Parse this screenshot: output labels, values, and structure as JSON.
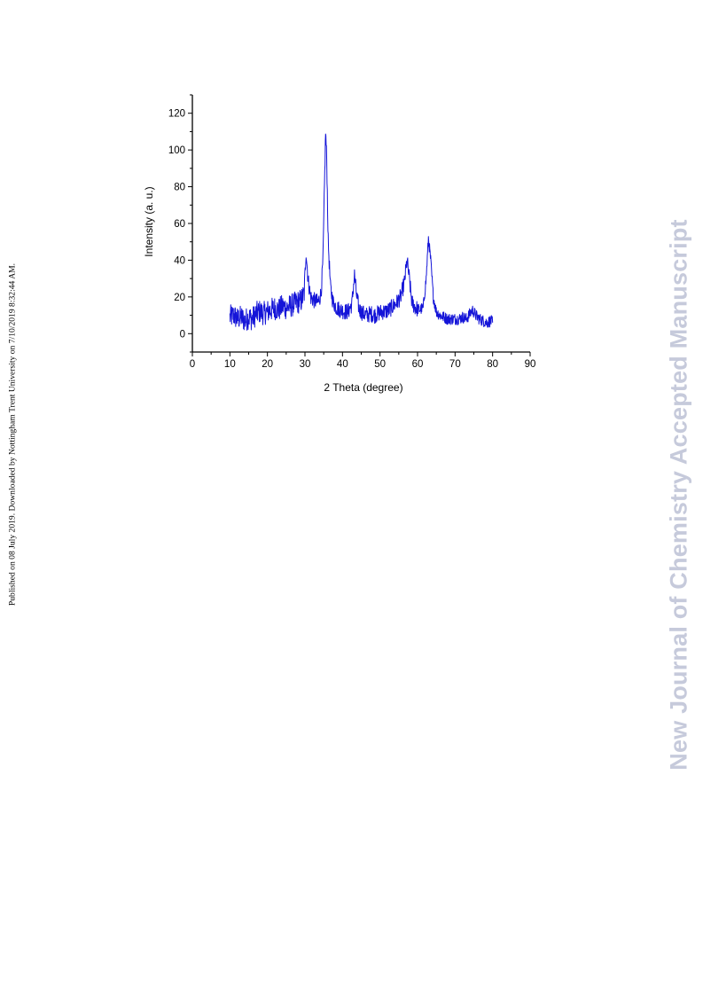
{
  "page": {
    "side_note": "Published on 08 July 2019. Downloaded by Nottingham Trent University on 7/10/2019 8:32:44 AM.",
    "watermark": "New Journal of Chemistry Accepted Manuscript",
    "watermark_color": "#c6cadb"
  },
  "chart_data": {
    "type": "line",
    "title": "",
    "xlabel": "2 Theta (degree)",
    "ylabel": "Intensity (a. u.)",
    "xlim": [
      0,
      90
    ],
    "ylim": [
      -10,
      130
    ],
    "xticks": [
      "0",
      "10",
      "20",
      "30",
      "40",
      "50",
      "60",
      "70",
      "80",
      "90"
    ],
    "yticks": [
      "0",
      "20",
      "40",
      "60",
      "80",
      "100",
      "120"
    ],
    "grid": false,
    "line_color": "#1414d8",
    "series": [
      {
        "points": [
          [
            10,
            9
          ],
          [
            11,
            10
          ],
          [
            12,
            8
          ],
          [
            13,
            9
          ],
          [
            14,
            7
          ],
          [
            15,
            9
          ],
          [
            16,
            8
          ],
          [
            17,
            11
          ],
          [
            18,
            12
          ],
          [
            19,
            11
          ],
          [
            20,
            12
          ],
          [
            21,
            13
          ],
          [
            22,
            14
          ],
          [
            23,
            13
          ],
          [
            24,
            15
          ],
          [
            25,
            14
          ],
          [
            26,
            15
          ],
          [
            27,
            16
          ],
          [
            28,
            17
          ],
          [
            29,
            18
          ],
          [
            29.8,
            22
          ],
          [
            30.3,
            45
          ],
          [
            30.8,
            30
          ],
          [
            31.5,
            20
          ],
          [
            32.5,
            18
          ],
          [
            33.5,
            17
          ],
          [
            34.3,
            22
          ],
          [
            34.8,
            40
          ],
          [
            35.2,
            80
          ],
          [
            35.5,
            110
          ],
          [
            35.8,
            95
          ],
          [
            36.2,
            50
          ],
          [
            36.8,
            25
          ],
          [
            37.5,
            17
          ],
          [
            38.5,
            14
          ],
          [
            39.5,
            13
          ],
          [
            40.5,
            12
          ],
          [
            41.5,
            12
          ],
          [
            42.5,
            16
          ],
          [
            43.2,
            32
          ],
          [
            43.8,
            20
          ],
          [
            44.5,
            13
          ],
          [
            45.5,
            11
          ],
          [
            46.5,
            10
          ],
          [
            47.5,
            11
          ],
          [
            48.5,
            10
          ],
          [
            49.5,
            11
          ],
          [
            50.5,
            12
          ],
          [
            51.5,
            12
          ],
          [
            52.5,
            13
          ],
          [
            53.5,
            15
          ],
          [
            54.5,
            17
          ],
          [
            55.5,
            20
          ],
          [
            56.5,
            28
          ],
          [
            57.2,
            40
          ],
          [
            57.8,
            30
          ],
          [
            58.5,
            17
          ],
          [
            59.5,
            14
          ],
          [
            60.5,
            13
          ],
          [
            61.5,
            14
          ],
          [
            62.3,
            30
          ],
          [
            62.9,
            52
          ],
          [
            63.5,
            40
          ],
          [
            64.2,
            20
          ],
          [
            65,
            12
          ],
          [
            66,
            10
          ],
          [
            67,
            9
          ],
          [
            68,
            8
          ],
          [
            69,
            8
          ],
          [
            70,
            8
          ],
          [
            71,
            8
          ],
          [
            72,
            9
          ],
          [
            73,
            8
          ],
          [
            74,
            11
          ],
          [
            74.6,
            13
          ],
          [
            75.5,
            10
          ],
          [
            76.5,
            8
          ],
          [
            77.5,
            7
          ],
          [
            78.5,
            6
          ],
          [
            79.5,
            7
          ],
          [
            80,
            6
          ]
        ]
      }
    ]
  }
}
